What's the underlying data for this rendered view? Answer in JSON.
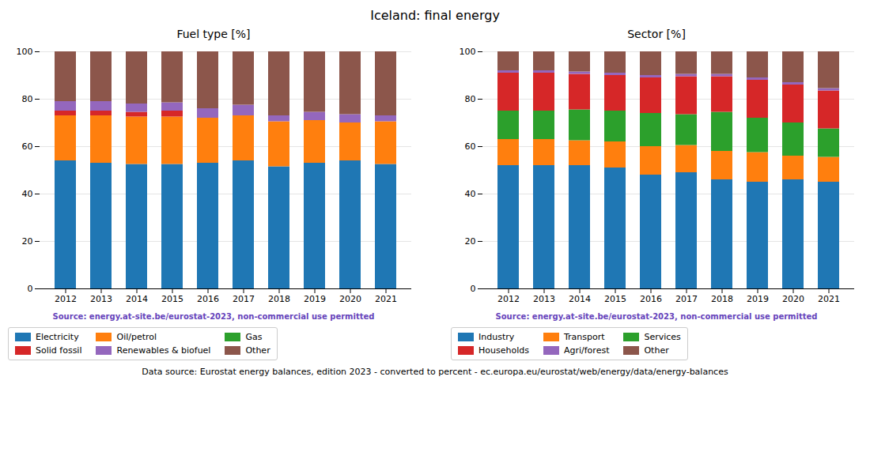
{
  "title": "Iceland: final energy",
  "chart_data": [
    {
      "type": "bar",
      "stacked": true,
      "grid": true,
      "title": "Fuel type [%]",
      "categories": [
        "2012",
        "2013",
        "2014",
        "2015",
        "2016",
        "2017",
        "2018",
        "2019",
        "2020",
        "2021"
      ],
      "series": [
        {
          "name": "Electricity",
          "color": "#1f77b4",
          "values": [
            54.0,
            53.0,
            52.5,
            52.5,
            53.0,
            54.0,
            51.5,
            53.0,
            54.0,
            52.5
          ]
        },
        {
          "name": "Oil/petrol",
          "color": "#ff7f0e",
          "values": [
            19.0,
            20.0,
            20.0,
            20.0,
            19.0,
            19.0,
            19.0,
            18.0,
            16.0,
            18.0
          ]
        },
        {
          "name": "Gas",
          "color": "#2ca02c",
          "values": [
            0.0,
            0.0,
            0.0,
            0.0,
            0.0,
            0.0,
            0.0,
            0.0,
            0.0,
            0.0
          ]
        },
        {
          "name": "Solid fossil",
          "color": "#d62728",
          "values": [
            2.0,
            2.0,
            2.0,
            2.5,
            0.0,
            0.0,
            0.0,
            0.0,
            0.0,
            0.0
          ]
        },
        {
          "name": "Renewables & biofuel",
          "color": "#9467bd",
          "values": [
            4.0,
            4.0,
            3.5,
            3.5,
            4.0,
            4.5,
            2.5,
            3.5,
            3.5,
            2.5
          ]
        },
        {
          "name": "Other",
          "color": "#8c564b",
          "values": [
            21.0,
            21.0,
            22.0,
            21.5,
            24.0,
            22.5,
            27.0,
            25.5,
            26.5,
            27.0
          ]
        }
      ],
      "ylim": [
        0,
        100
      ],
      "yticks": [
        0,
        20,
        40,
        60,
        80,
        100
      ],
      "annotations": [
        {
          "text": "Source: energy.at-site.be/eurostat-2023, non-commercial use permitted",
          "color": "#6644bb"
        }
      ]
    },
    {
      "type": "bar",
      "stacked": true,
      "grid": true,
      "title": "Sector [%]",
      "categories": [
        "2012",
        "2013",
        "2014",
        "2015",
        "2016",
        "2017",
        "2018",
        "2019",
        "2020",
        "2021"
      ],
      "series": [
        {
          "name": "Industry",
          "color": "#1f77b4",
          "values": [
            52.0,
            52.0,
            52.0,
            51.0,
            48.0,
            49.0,
            46.0,
            45.0,
            46.0,
            45.0
          ]
        },
        {
          "name": "Transport",
          "color": "#ff7f0e",
          "values": [
            11.0,
            11.0,
            10.5,
            11.0,
            12.0,
            11.5,
            12.0,
            12.5,
            10.0,
            10.5
          ]
        },
        {
          "name": "Services",
          "color": "#2ca02c",
          "values": [
            12.0,
            12.0,
            13.0,
            13.0,
            14.0,
            13.0,
            16.5,
            14.5,
            14.0,
            12.0
          ]
        },
        {
          "name": "Households",
          "color": "#d62728",
          "values": [
            16.0,
            16.0,
            15.0,
            15.0,
            15.0,
            16.0,
            15.0,
            16.0,
            16.0,
            16.0
          ]
        },
        {
          "name": "Agri/forest",
          "color": "#9467bd",
          "values": [
            1.0,
            1.0,
            1.0,
            1.0,
            1.0,
            1.0,
            1.0,
            1.0,
            1.0,
            1.0
          ]
        },
        {
          "name": "Other",
          "color": "#8c564b",
          "values": [
            8.0,
            8.0,
            8.5,
            9.0,
            10.0,
            9.5,
            9.5,
            11.0,
            13.0,
            15.5
          ]
        }
      ],
      "ylim": [
        0,
        100
      ],
      "yticks": [
        0,
        20,
        40,
        60,
        80,
        100
      ],
      "annotations": [
        {
          "text": "Source: energy.at-site.be/eurostat-2023, non-commercial use permitted",
          "color": "#6644bb"
        }
      ]
    }
  ],
  "annotations": [
    {
      "text": "Data source: Eurostat energy balances, edition 2023 - converted to percent - ec.europa.eu/eurostat/web/energy/data/energy-balances"
    }
  ]
}
